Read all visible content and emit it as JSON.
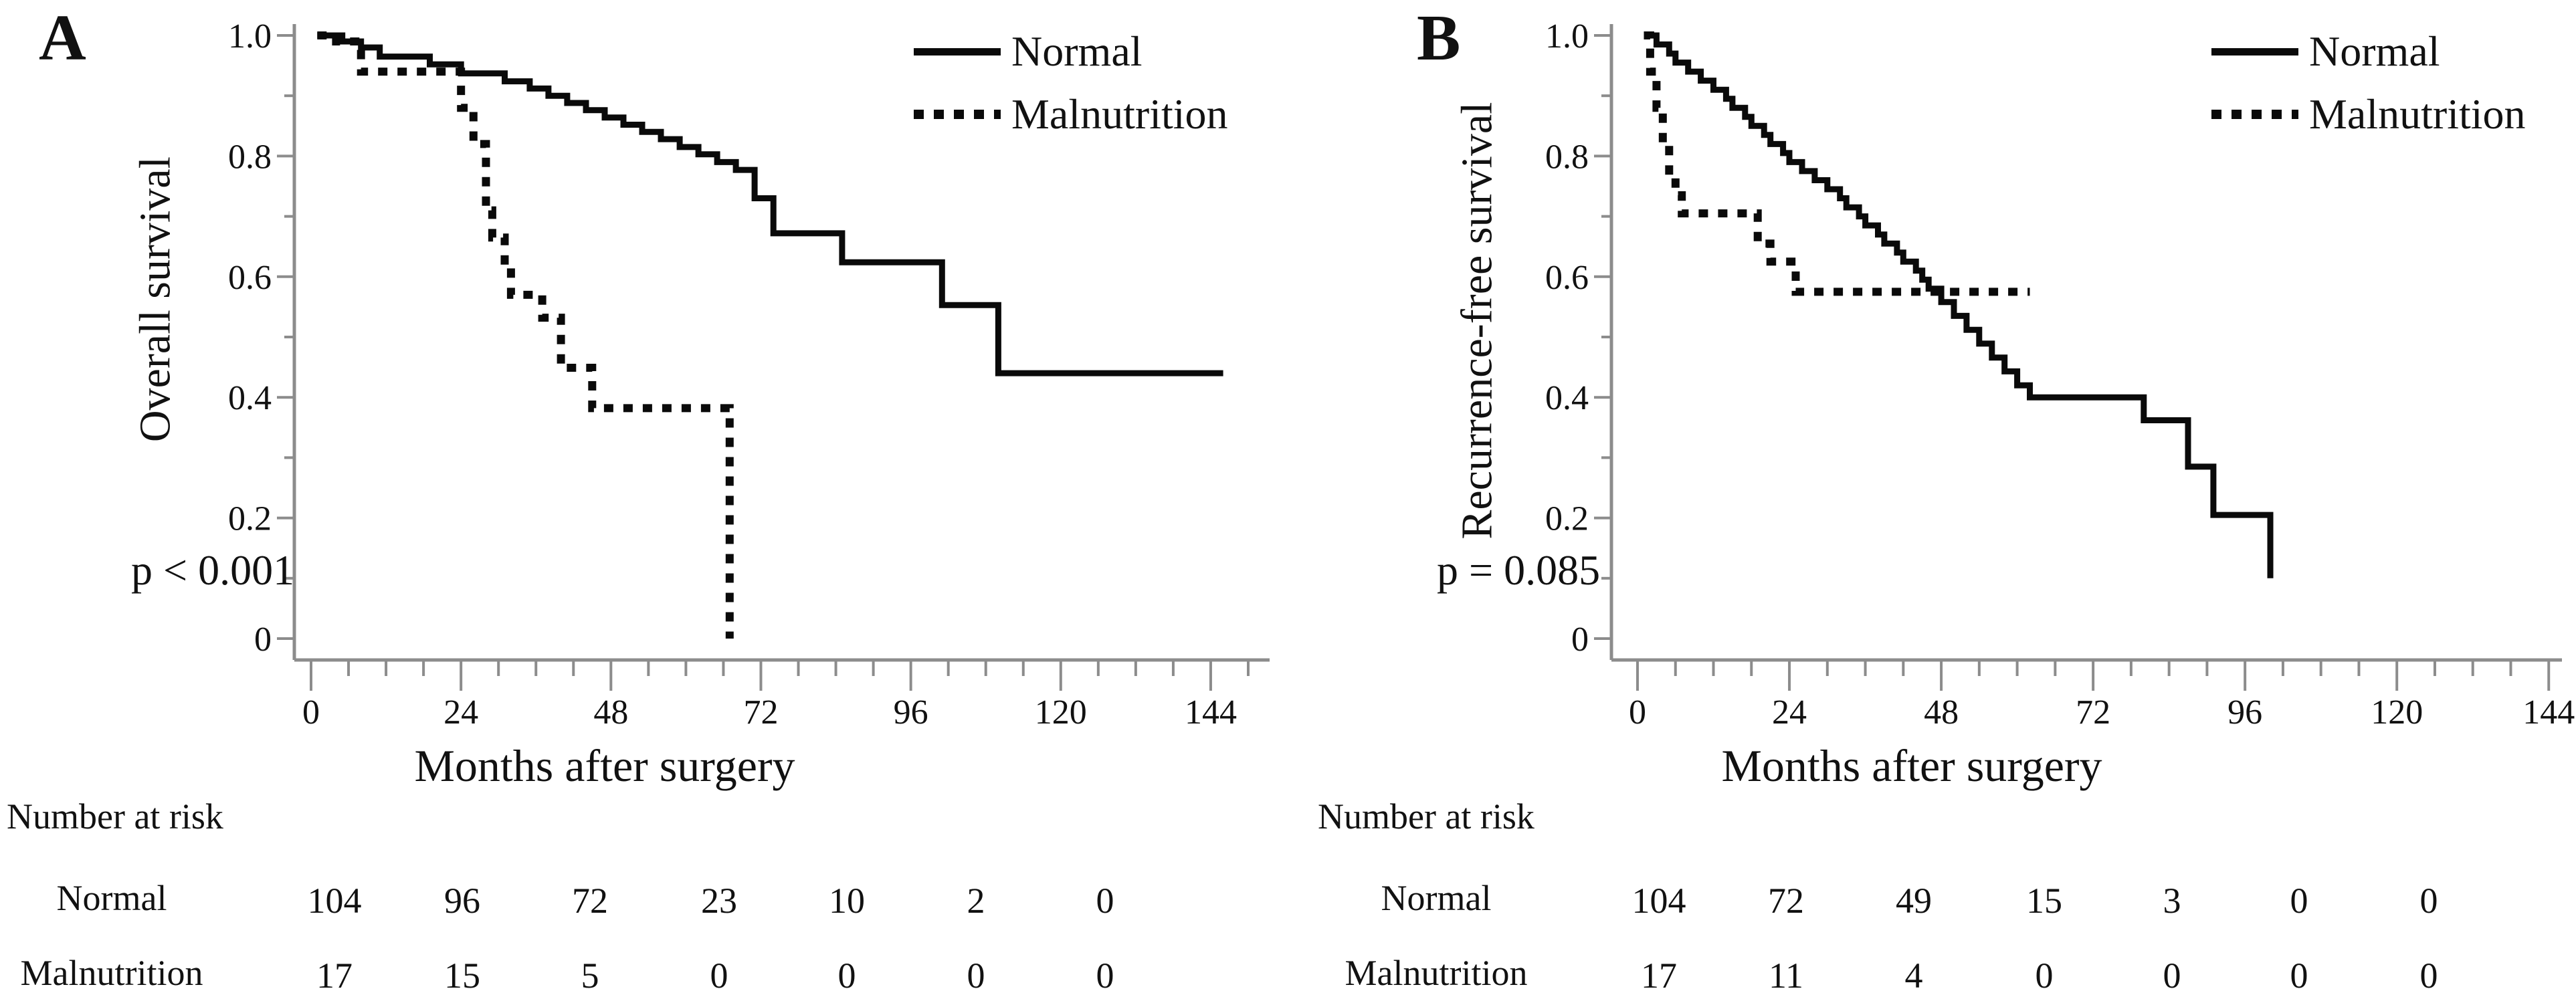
{
  "figure": {
    "background": "#ffffff"
  },
  "colors": {
    "curve": "#0a0a0a",
    "axis": "#8c8c8c",
    "text": "#111111"
  },
  "chart_data": [
    {
      "panel_label": "A",
      "type": "line",
      "subtype": "kaplan-meier-step",
      "ylabel": "Overall survival",
      "xlabel": "Months after surgery",
      "p_value": "p < 0.001",
      "legend_position": "top-right",
      "grid": false,
      "xlim": [
        0,
        150
      ],
      "ylim": [
        0,
        1.0
      ],
      "x_ticks": [
        0,
        24,
        48,
        72,
        96,
        120,
        144
      ],
      "x_minor_tick_step": 6,
      "y_ticks": [
        1.0,
        0.8,
        0.6,
        0.4,
        0.2,
        0
      ],
      "y_tick_labels": [
        "1.0",
        "0.8",
        "0.6",
        "0.4",
        "0.2",
        "0"
      ],
      "series": [
        {
          "name": "Normal",
          "style": "solid",
          "start": [
            1,
            1.0
          ],
          "steps": [
            [
              5,
              0.99
            ],
            [
              8,
              0.98
            ],
            [
              11,
              0.965
            ],
            [
              19,
              0.952
            ],
            [
              24,
              0.937
            ],
            [
              31,
              0.924
            ],
            [
              35,
              0.912
            ],
            [
              38,
              0.9
            ],
            [
              41,
              0.888
            ],
            [
              44,
              0.876
            ],
            [
              47,
              0.864
            ],
            [
              50,
              0.852
            ],
            [
              53,
              0.84
            ],
            [
              56,
              0.828
            ],
            [
              59,
              0.815
            ],
            [
              62,
              0.803
            ],
            [
              65,
              0.79
            ],
            [
              68,
              0.777
            ],
            [
              71,
              0.73
            ],
            [
              74,
              0.672
            ],
            [
              85,
              0.624
            ],
            [
              101,
              0.553
            ],
            [
              110,
              0.44
            ]
          ],
          "end_time": 146
        },
        {
          "name": "Malnutrition",
          "style": "dashed",
          "start": [
            1,
            1.0
          ],
          "steps": [
            [
              4,
              0.99
            ],
            [
              8,
              0.94
            ],
            [
              24,
              0.88
            ],
            [
              26,
              0.82
            ],
            [
              28,
              0.71
            ],
            [
              29,
              0.665
            ],
            [
              31,
              0.62
            ],
            [
              32,
              0.57
            ],
            [
              37,
              0.532
            ],
            [
              40,
              0.449
            ],
            [
              45,
              0.382
            ],
            [
              67,
              0.0
            ]
          ],
          "end_time": 67
        }
      ],
      "number_at_risk": {
        "title": "Number at risk",
        "times": [
          0,
          24,
          48,
          72,
          96,
          120,
          144
        ],
        "rows": [
          {
            "label": "Normal",
            "values": [
              "104",
              "96",
              "72",
              "23",
              "10",
              "2",
              "0"
            ]
          },
          {
            "label": "Malnutrition",
            "values": [
              "17",
              "15",
              "5",
              "0",
              "0",
              "0",
              "0"
            ]
          }
        ]
      }
    },
    {
      "panel_label": "B",
      "type": "line",
      "subtype": "kaplan-meier-step",
      "ylabel": "Recurrence-free survival",
      "xlabel": "Months after surgery",
      "p_value": "p = 0.085",
      "legend_position": "top-right",
      "grid": false,
      "xlim": [
        0,
        150
      ],
      "ylim": [
        0,
        1.0
      ],
      "x_ticks": [
        0,
        24,
        48,
        72,
        96,
        120,
        144
      ],
      "x_minor_tick_step": 6,
      "y_ticks": [
        1.0,
        0.8,
        0.6,
        0.4,
        0.2,
        0
      ],
      "y_tick_labels": [
        "1.0",
        "0.8",
        "0.6",
        "0.4",
        "0.2",
        "0"
      ],
      "series": [
        {
          "name": "Normal",
          "style": "solid",
          "start": [
            1,
            1.0
          ],
          "steps": [
            [
              3,
              0.985
            ],
            [
              5,
              0.97
            ],
            [
              6,
              0.955
            ],
            [
              8,
              0.94
            ],
            [
              10,
              0.925
            ],
            [
              12,
              0.91
            ],
            [
              14,
              0.895
            ],
            [
              15,
              0.88
            ],
            [
              17,
              0.865
            ],
            [
              18,
              0.85
            ],
            [
              20,
              0.835
            ],
            [
              21,
              0.82
            ],
            [
              23,
              0.805
            ],
            [
              24,
              0.79
            ],
            [
              26,
              0.775
            ],
            [
              28,
              0.76
            ],
            [
              30,
              0.745
            ],
            [
              32,
              0.73
            ],
            [
              33,
              0.715
            ],
            [
              35,
              0.7
            ],
            [
              36,
              0.685
            ],
            [
              38,
              0.67
            ],
            [
              39,
              0.655
            ],
            [
              41,
              0.64
            ],
            [
              42,
              0.625
            ],
            [
              44,
              0.61
            ],
            [
              45,
              0.595
            ],
            [
              46,
              0.58
            ],
            [
              48,
              0.558
            ],
            [
              50,
              0.535
            ],
            [
              52,
              0.512
            ],
            [
              54,
              0.489
            ],
            [
              56,
              0.466
            ],
            [
              58,
              0.443
            ],
            [
              60,
              0.42
            ],
            [
              62,
              0.4
            ],
            [
              80,
              0.362
            ],
            [
              87,
              0.285
            ],
            [
              91,
              0.205
            ],
            [
              100,
              0.1
            ]
          ],
          "end_time": 100
        },
        {
          "name": "Malnutrition",
          "style": "dashed",
          "start": [
            1,
            1.0
          ],
          "steps": [
            [
              2,
              0.94
            ],
            [
              3,
              0.88
            ],
            [
              4,
              0.82
            ],
            [
              5,
              0.765
            ],
            [
              6,
              0.735
            ],
            [
              7,
              0.705
            ],
            [
              19,
              0.655
            ],
            [
              21,
              0.625
            ],
            [
              25,
              0.575
            ]
          ],
          "end_time": 62
        }
      ],
      "number_at_risk": {
        "title": "Number at risk",
        "times": [
          0,
          24,
          48,
          72,
          96,
          120,
          144
        ],
        "rows": [
          {
            "label": "Normal",
            "values": [
              "104",
              "72",
              "49",
              "15",
              "3",
              "0",
              "0"
            ]
          },
          {
            "label": "Malnutrition",
            "values": [
              "17",
              "11",
              "4",
              "0",
              "0",
              "0",
              "0"
            ]
          }
        ]
      }
    }
  ]
}
